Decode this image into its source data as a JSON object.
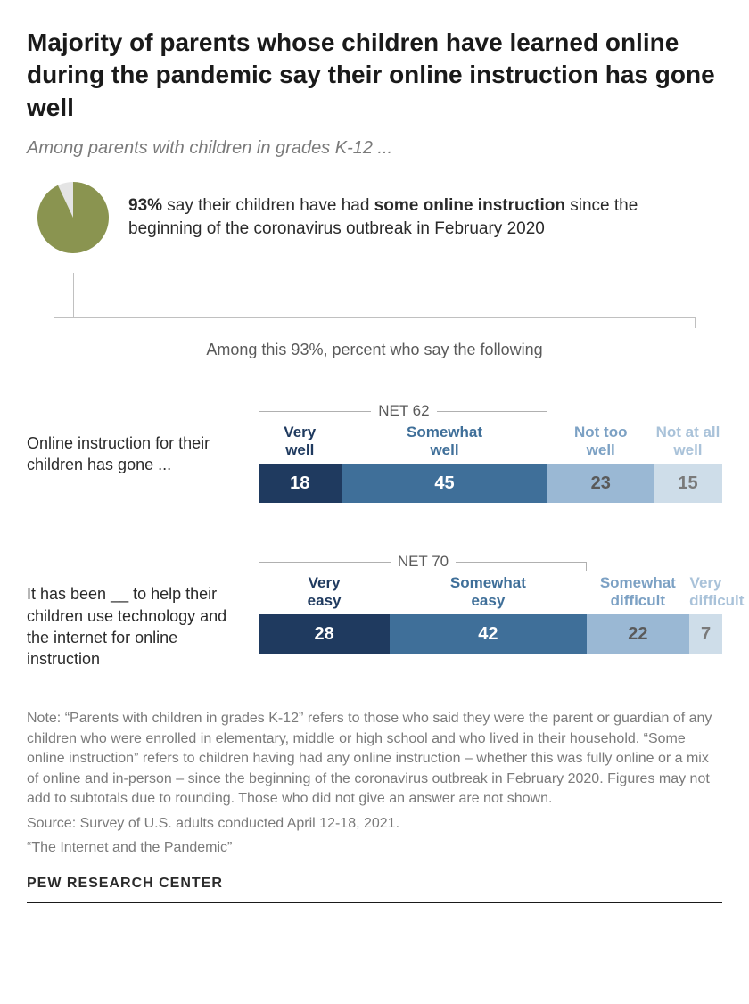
{
  "title": "Majority of parents whose children have learned online during the pandemic say their online instruction has gone well",
  "subtitle": "Among parents with children in grades K-12 ...",
  "pie": {
    "percent": 93,
    "percent_label": "93%",
    "remainder": 7,
    "text_prefix": " say their children have had ",
    "text_bold": "some online instruction",
    "text_suffix": " since the beginning of the coronavirus outbreak in February 2020",
    "colors": {
      "main": "#8a9450",
      "remainder": "#e4e4e4"
    }
  },
  "among_text": "Among this 93%, percent who say the following",
  "charts": [
    {
      "label": "Online instruction for their children has gone ...",
      "net_label": "NET 62",
      "net_span_pct": 62.4,
      "segments": [
        {
          "category": "Very well",
          "value": 18,
          "width_pct": 17.8,
          "color": "#1f3a5f",
          "label_color": "#1f3a5f",
          "text_color": "#ffffff"
        },
        {
          "category": "Somewhat well",
          "value": 45,
          "width_pct": 44.6,
          "color": "#3f6f99",
          "label_color": "#3f6f99",
          "text_color": "#ffffff"
        },
        {
          "category": "Not too well",
          "value": 23,
          "width_pct": 22.8,
          "color": "#9ab8d4",
          "label_color": "#7ca1c4",
          "text_color": "#5a5a5a"
        },
        {
          "category": "Not at all well",
          "value": 15,
          "width_pct": 14.8,
          "color": "#cedde9",
          "label_color": "#a9c2d9",
          "text_color": "#7a7a7a"
        }
      ]
    },
    {
      "label": "It has been __ to help their children use technology and the internet for online instruction",
      "net_label": "NET 70",
      "net_span_pct": 70.7,
      "segments": [
        {
          "category": "Very easy",
          "value": 28,
          "width_pct": 28.3,
          "color": "#1f3a5f",
          "label_color": "#1f3a5f",
          "text_color": "#ffffff"
        },
        {
          "category": "Somewhat easy",
          "value": 42,
          "width_pct": 42.4,
          "color": "#3f6f99",
          "label_color": "#3f6f99",
          "text_color": "#ffffff"
        },
        {
          "category": "Somewhat difficult",
          "value": 22,
          "width_pct": 22.2,
          "color": "#9ab8d4",
          "label_color": "#7ca1c4",
          "text_color": "#5a5a5a"
        },
        {
          "category": "Very difficult",
          "value": 7,
          "width_pct": 7.1,
          "color": "#cedde9",
          "label_color": "#a9c2d9",
          "text_color": "#7a7a7a"
        }
      ]
    }
  ],
  "note": "Note: “Parents with children in grades K-12” refers to those who said they were the parent or guardian of any children who were enrolled in elementary, middle or high school and who lived in their household. “Some online instruction” refers to children having had any online instruction – whether this was fully online or a mix of online and in-person – since the beginning of the coronavirus outbreak in February 2020. Figures may not add to subtotals due to rounding. Those who did not give an answer are not shown.",
  "source": "Source: Survey of U.S. adults conducted April 12-18, 2021.",
  "report": "“The Internet and the Pandemic”",
  "footer": "PEW RESEARCH CENTER"
}
